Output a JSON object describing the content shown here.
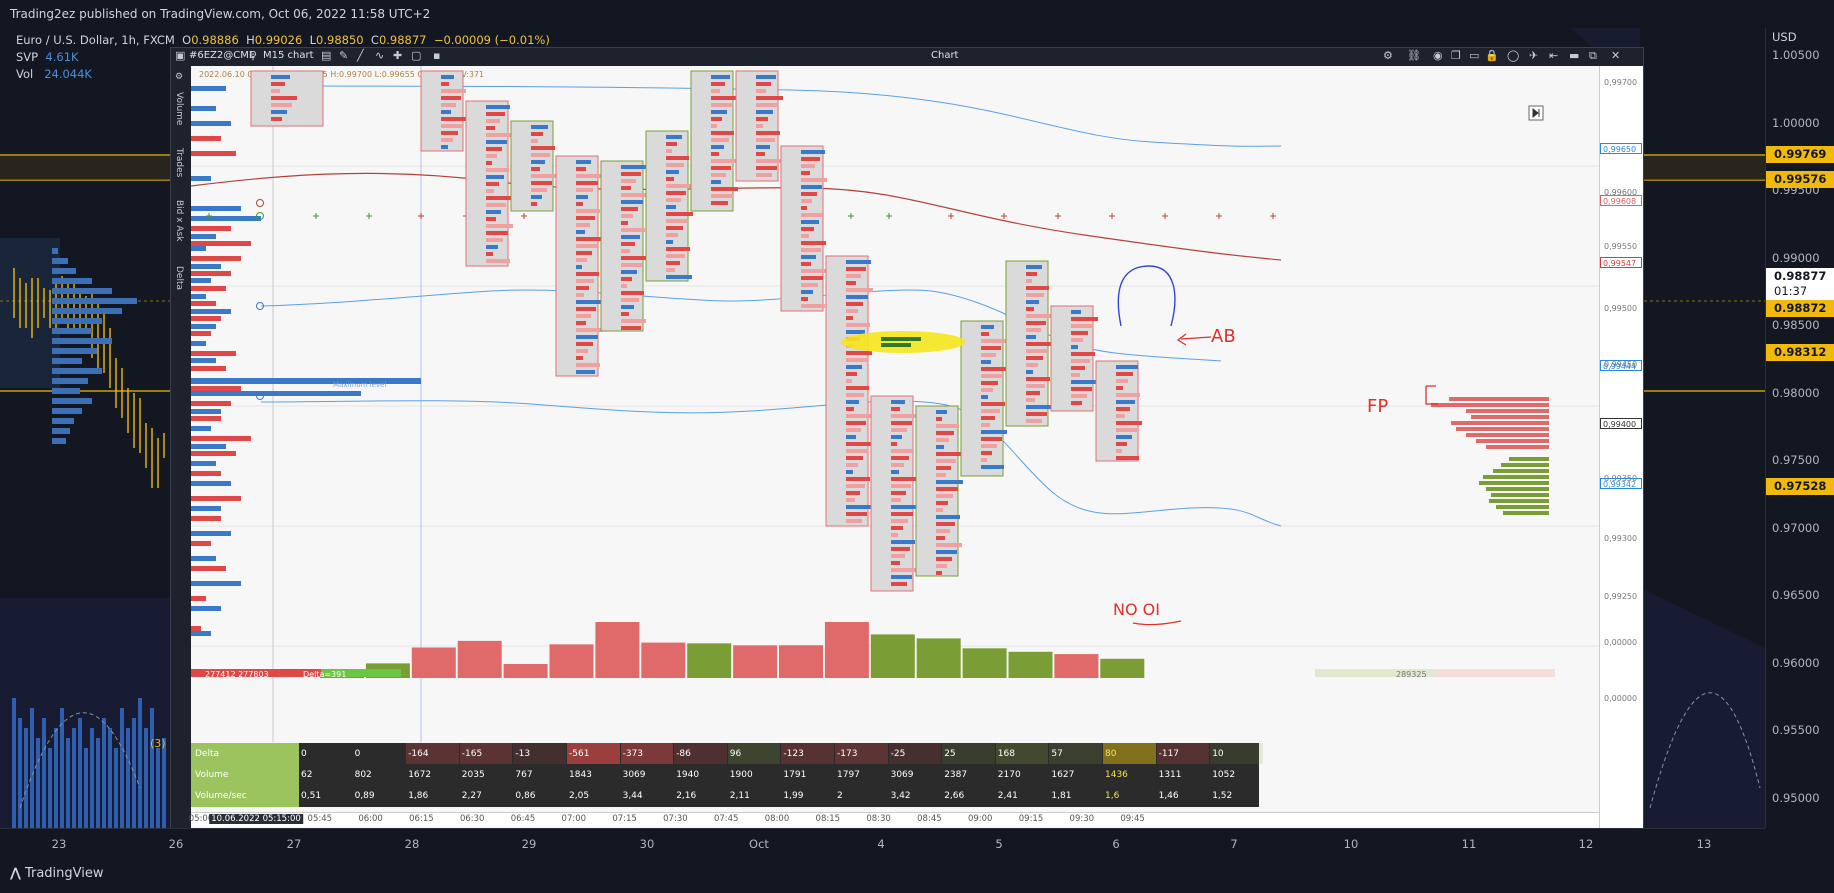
{
  "header": {
    "published_text": "Trading2ez published on TradingView.com, Oct 06, 2022 11:58 UTC+2"
  },
  "legend": {
    "symbol": "Euro / U.S. Dollar, 1h, FXCM",
    "o_label": "O",
    "o_value": "0.98886",
    "h_label": "H",
    "h_value": "0.99026",
    "l_label": "L",
    "l_value": "0.98850",
    "c_label": "C",
    "c_value": "0.98877",
    "change": "−0.00009 (−0.01%)",
    "svp_label": "SVP",
    "svp_value": "4.61K",
    "vol_label": "Vol",
    "vol_value": "24.044K"
  },
  "price_axis": {
    "currency": "USD",
    "ticks": [
      "1.00500",
      "1.00000",
      "0.99500",
      "0.99000",
      "0.98500",
      "0.98000",
      "0.97500",
      "0.97000",
      "0.96500",
      "0.96000",
      "0.95500",
      "0.95000"
    ],
    "badges": [
      {
        "text": "0.99769",
        "bg": "#f0b90b",
        "fg": "#131722"
      },
      {
        "text": "0.99576",
        "bg": "#f0b90b",
        "fg": "#131722"
      },
      {
        "text": "0.98877",
        "bg": "#ffffff",
        "fg": "#131722"
      },
      {
        "text": "01:37",
        "bg": "#ffffff",
        "fg": "#131722"
      },
      {
        "text": "0.98872",
        "bg": "#f0b90b",
        "fg": "#131722"
      },
      {
        "text": "0.98312",
        "bg": "#f0b90b",
        "fg": "#131722"
      },
      {
        "text": "0.97528",
        "bg": "#f0b90b",
        "fg": "#131722"
      }
    ]
  },
  "time_axis": {
    "ticks": [
      "23",
      "26",
      "27",
      "28",
      "29",
      "30",
      "Oct",
      "4",
      "5",
      "6",
      "7",
      "10",
      "11",
      "12",
      "13"
    ]
  },
  "footer": {
    "brand": "TradingView"
  },
  "window": {
    "symbol": "#6EZ2@CME",
    "interval": "M15 chart",
    "title": "Chart",
    "ohlc_strip": "2022.06.10 05:15:00 O:0.99655 H:0.99700 L:0.99655 C:0.99700 V:371",
    "side_labels": [
      "Volume",
      "Trades",
      "Bid x Ask",
      "Delta"
    ],
    "price_ticks": [
      "0,99700",
      "0,99650",
      "0,99600",
      "0,99550",
      "0,99500",
      "0,99450",
      "0,99400",
      "0,99350",
      "0,99300",
      "0,99250",
      "0,00000",
      "0,00000"
    ],
    "price_badges": [
      {
        "text": "0,99650",
        "color": "#2a88e0"
      },
      {
        "text": "0,99608",
        "color": "#e06060"
      },
      {
        "text": "0,99547",
        "color": "#d04040"
      },
      {
        "text": "0,99444",
        "color": "#2a88e0"
      },
      {
        "text": "0,99400",
        "color": "#333333"
      },
      {
        "text": "0,99342",
        "color": "#2a88e0"
      }
    ],
    "time_ticks": [
      "05:00",
      "10.06.2022 05:15:00",
      "05:45",
      "06:00",
      "06:15",
      "06:30",
      "06:45",
      "07:00",
      "07:15",
      "07:30",
      "07:45",
      "08:00",
      "08:15",
      "08:30",
      "08:45",
      "09:00",
      "09:15",
      "09:30",
      "09:45"
    ],
    "volume_bar_labels": {
      "left_total": "277412 277803",
      "delta": "Delta=391",
      "right_total": "289325"
    },
    "profile_label": "Maximum level"
  },
  "table": {
    "rows": [
      {
        "label": "Delta",
        "values": [
          "0",
          "0",
          "-164",
          "-165",
          "-13",
          "-561",
          "-373",
          "-86",
          "96",
          "-123",
          "-173",
          "-25",
          "25",
          "168",
          "57",
          "80",
          "-117",
          "10"
        ]
      },
      {
        "label": "Volume",
        "values": [
          "62",
          "802",
          "1672",
          "2035",
          "767",
          "1843",
          "3069",
          "1940",
          "1900",
          "1791",
          "1797",
          "3069",
          "2387",
          "2170",
          "1627",
          "1436",
          "1311",
          "1052"
        ]
      },
      {
        "label": "Volume/sec",
        "values": [
          "0,51",
          "0,89",
          "1,86",
          "2,27",
          "0,86",
          "2,05",
          "3,44",
          "2,16",
          "2,11",
          "1,99",
          "2",
          "3,42",
          "2,66",
          "2,41",
          "1,81",
          "1,6",
          "1,46",
          "1,52"
        ]
      }
    ],
    "volume_histogram": [
      62,
      802,
      1672,
      2035,
      767,
      1843,
      3069,
      1940,
      1900,
      1791,
      1797,
      3069,
      2387,
      2170,
      1627,
      1436,
      1311,
      1052
    ]
  },
  "annotations": {
    "ab": "AB",
    "fp": "FP",
    "no_oi": "NO OI"
  },
  "colors": {
    "accent_yellow": "#f0b90b",
    "up_green": "#7a9e35",
    "down_red": "#e06a6a",
    "blue_line": "#5aa0e6"
  }
}
